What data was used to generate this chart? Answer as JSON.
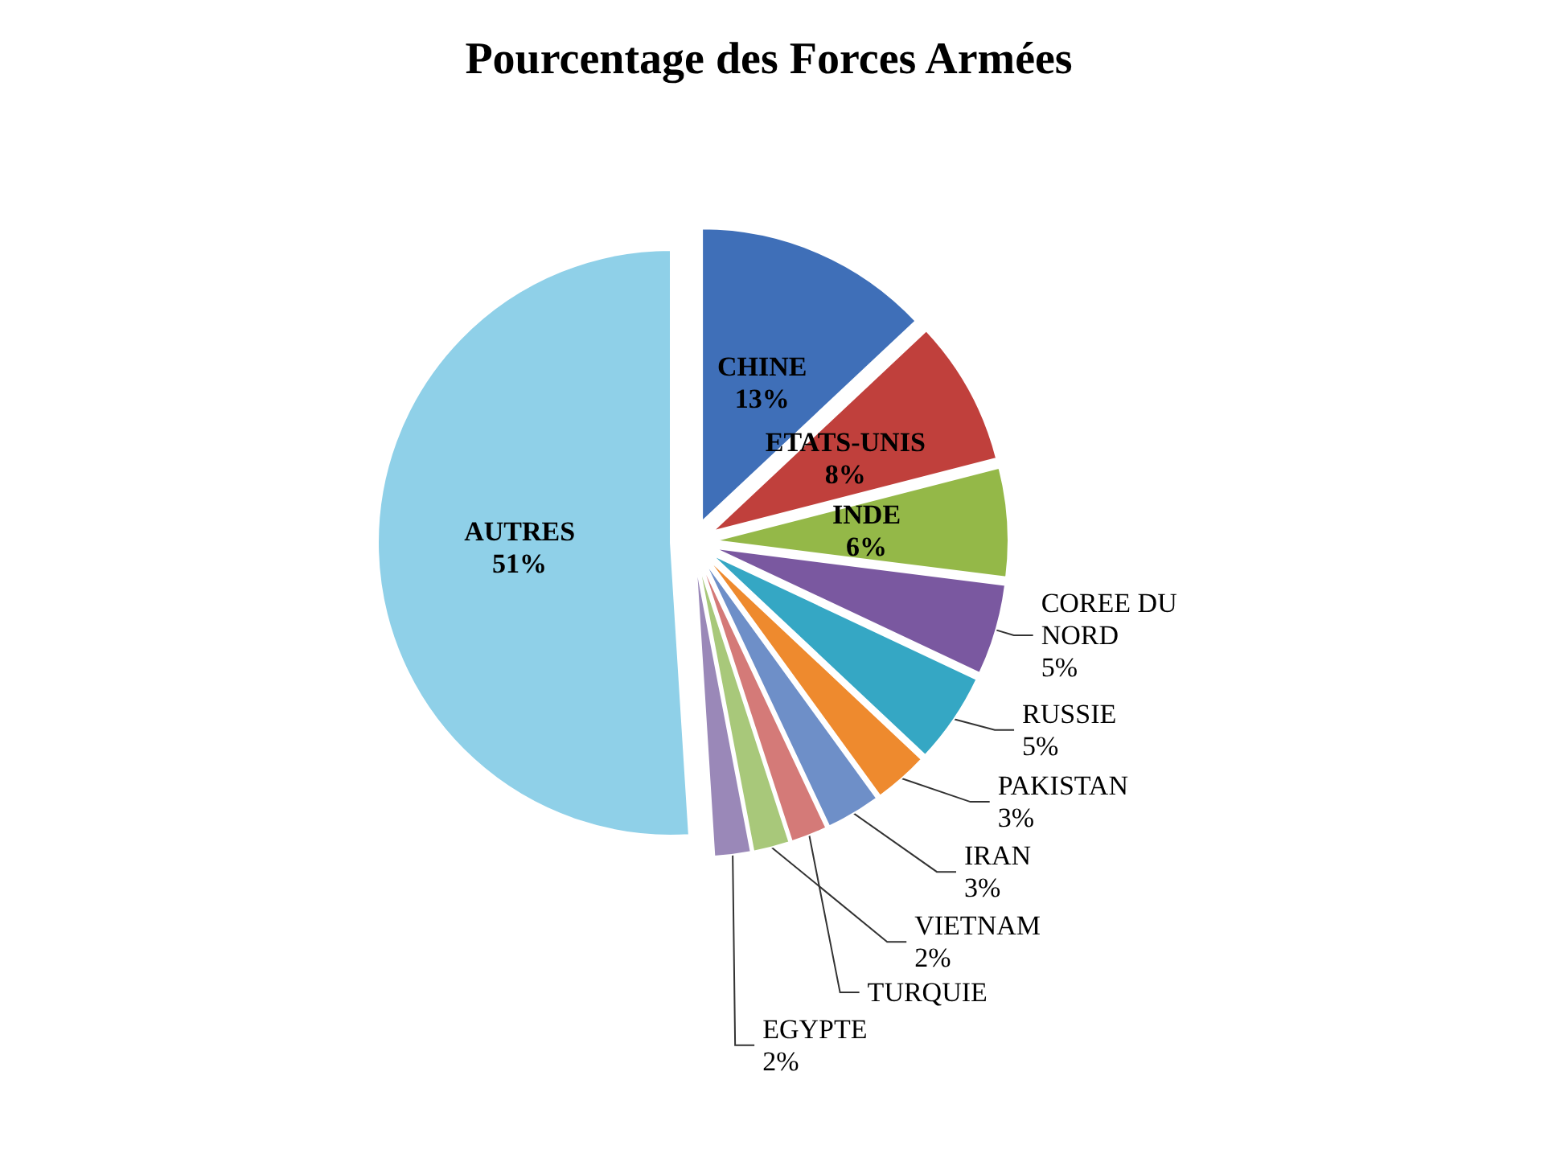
{
  "chart_data": {
    "type": "pie",
    "title": "Pourcentage des Forces Armées",
    "categories": [
      "CHINE",
      "ETATS-UNIS",
      "INDE",
      "COREE DU NORD",
      "RUSSIE",
      "PAKISTAN",
      "IRAN",
      "TURQUIE",
      "VIETNAM",
      "EGYPTE",
      "AUTRES"
    ],
    "values": [
      13,
      8,
      6,
      5,
      5,
      3,
      3,
      2,
      2,
      2,
      51
    ],
    "value_labels": [
      "13%",
      "8%",
      "6%",
      "5%",
      "5%",
      "3%",
      "3%",
      null,
      "2%",
      "2%",
      "51%"
    ],
    "colors": [
      "#3f6fb8",
      "#c0403c",
      "#94b848",
      "#7a58a0",
      "#35a7c4",
      "#ee8a2e",
      "#6e8fc8",
      "#d47a78",
      "#a8c87a",
      "#9a88b8",
      "#8fd0e8"
    ],
    "legend": false
  }
}
